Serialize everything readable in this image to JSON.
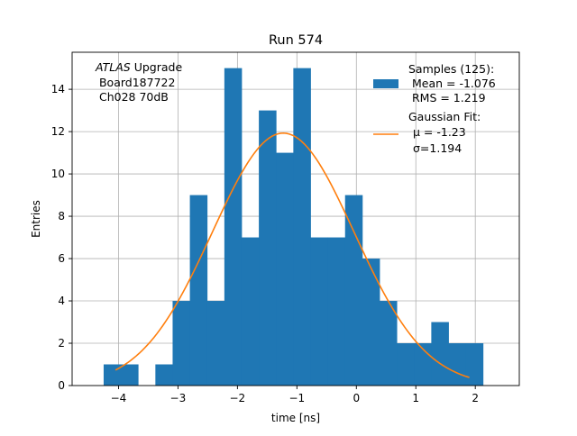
{
  "chart_data": {
    "type": "bar",
    "title": "Run 574",
    "xlabel": "time [ns]",
    "ylabel": "Entries",
    "xlim": [
      -4.78,
      2.74
    ],
    "ylim": [
      0,
      15.75
    ],
    "grid": true,
    "xticks": [
      -4,
      -3,
      -2,
      -1,
      0,
      1,
      2
    ],
    "yticks": [
      0,
      2,
      4,
      6,
      8,
      10,
      12,
      14
    ],
    "xtick_labels": [
      "−4",
      "−3",
      "−2",
      "−1",
      "0",
      "1",
      "2"
    ],
    "ytick_labels": [
      "0",
      "2",
      "4",
      "6",
      "8",
      "10",
      "12",
      "14"
    ],
    "histogram": {
      "name": "Samples (125):",
      "color": "#1f77b4",
      "bin_edges": [
        -4.25,
        -3.96,
        -3.67,
        -3.38,
        -3.09,
        -2.8,
        -2.51,
        -2.22,
        -1.93,
        -1.64,
        -1.35,
        -1.06,
        -0.77,
        -0.48,
        -0.19,
        0.1,
        0.39,
        0.68,
        0.97,
        1.26,
        1.55,
        1.84,
        2.13
      ],
      "counts": [
        1,
        1,
        0,
        1,
        4,
        9,
        4,
        15,
        7,
        13,
        11,
        15,
        7,
        7,
        9,
        6,
        4,
        2,
        2,
        3,
        2,
        2
      ]
    },
    "fit": {
      "name": "Gaussian Fit:",
      "color": "#ff7f0e",
      "mu": -1.23,
      "sigma": 1.194,
      "amplitude": 11.93,
      "x_range": [
        -4.05,
        1.9
      ]
    },
    "legend": {
      "position": "upper right",
      "samples_lines": [
        "Samples (125):",
        " Mean = -1.076",
        " RMS = 1.219"
      ],
      "fit_lines": [
        "Gaussian Fit:",
        "μ = -1.23",
        "σ=1.194"
      ]
    },
    "annotation": {
      "position": "upper left",
      "italic_word": "ATLAS",
      "line1_rest": " Upgrade",
      "line2": " Board187722",
      "line3": " Ch028 70dB"
    }
  }
}
